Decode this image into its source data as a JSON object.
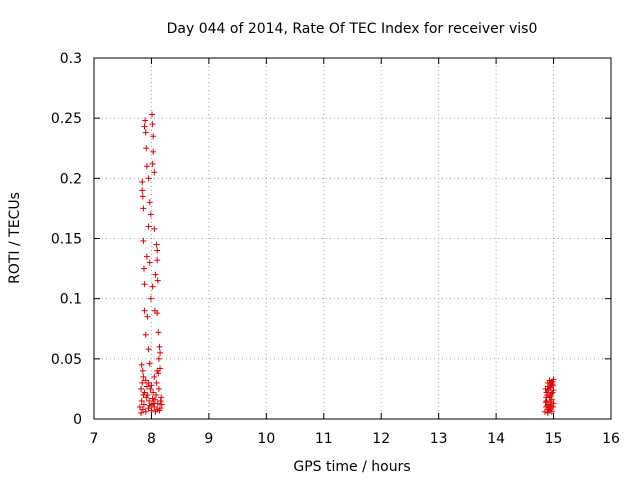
{
  "chart_data": {
    "type": "scatter",
    "title": "Day 044 of 2014, Rate Of TEC Index for receiver vis0",
    "xlabel": "GPS time / hours",
    "ylabel": "ROTI / TECUs",
    "xlim": [
      7,
      16
    ],
    "ylim": [
      0,
      0.3
    ],
    "xticks": [
      "7",
      "8",
      "9",
      "10",
      "11",
      "12",
      "13",
      "14",
      "15",
      "16"
    ],
    "yticks": [
      "0",
      "0.05",
      "0.1",
      "0.15",
      "0.2",
      "0.25",
      "0.3"
    ],
    "grid": true,
    "marker": "+",
    "series": [
      {
        "name": "vis0",
        "color": "#e00000",
        "points": [
          [
            7.84,
            0.19
          ],
          [
            7.84,
            0.197
          ],
          [
            7.85,
            0.185
          ],
          [
            7.86,
            0.175
          ],
          [
            7.88,
            0.243
          ],
          [
            7.89,
            0.248
          ],
          [
            7.9,
            0.238
          ],
          [
            7.91,
            0.225
          ],
          [
            7.92,
            0.21
          ],
          [
            7.95,
            0.2
          ],
          [
            7.97,
            0.18
          ],
          [
            7.99,
            0.17
          ],
          [
            8.01,
            0.253
          ],
          [
            8.02,
            0.245
          ],
          [
            8.03,
            0.235
          ],
          [
            8.03,
            0.222
          ],
          [
            8.02,
            0.212
          ],
          [
            8.05,
            0.205
          ],
          [
            7.86,
            0.148
          ],
          [
            7.95,
            0.16
          ],
          [
            7.97,
            0.13
          ],
          [
            7.92,
            0.135
          ],
          [
            8.05,
            0.158
          ],
          [
            8.09,
            0.145
          ],
          [
            8.1,
            0.14
          ],
          [
            8.1,
            0.132
          ],
          [
            7.87,
            0.125
          ],
          [
            7.88,
            0.112
          ],
          [
            7.99,
            0.1
          ],
          [
            8.02,
            0.11
          ],
          [
            8.07,
            0.12
          ],
          [
            8.11,
            0.115
          ],
          [
            7.88,
            0.09
          ],
          [
            7.93,
            0.085
          ],
          [
            8.06,
            0.09
          ],
          [
            8.1,
            0.088
          ],
          [
            8.12,
            0.072
          ],
          [
            7.9,
            0.07
          ],
          [
            7.95,
            0.058
          ],
          [
            8.14,
            0.06
          ],
          [
            8.15,
            0.055
          ],
          [
            8.13,
            0.05
          ],
          [
            7.83,
            0.045
          ],
          [
            7.97,
            0.046
          ],
          [
            7.85,
            0.04
          ],
          [
            7.86,
            0.035
          ],
          [
            7.84,
            0.03
          ],
          [
            7.9,
            0.032
          ],
          [
            7.95,
            0.03
          ],
          [
            8.0,
            0.028
          ],
          [
            8.05,
            0.035
          ],
          [
            8.1,
            0.04
          ],
          [
            8.12,
            0.038
          ],
          [
            8.15,
            0.042
          ],
          [
            7.82,
            0.025
          ],
          [
            7.88,
            0.022
          ],
          [
            7.93,
            0.02
          ],
          [
            7.98,
            0.025
          ],
          [
            8.03,
            0.022
          ],
          [
            8.08,
            0.02
          ],
          [
            8.13,
            0.025
          ],
          [
            8.17,
            0.018
          ],
          [
            7.83,
            0.015
          ],
          [
            7.87,
            0.012
          ],
          [
            7.91,
            0.018
          ],
          [
            7.96,
            0.015
          ],
          [
            8.01,
            0.012
          ],
          [
            8.06,
            0.016
          ],
          [
            8.11,
            0.013
          ],
          [
            8.16,
            0.015
          ],
          [
            7.8,
            0.01
          ],
          [
            7.85,
            0.008
          ],
          [
            7.9,
            0.006
          ],
          [
            7.95,
            0.009
          ],
          [
            8.0,
            0.007
          ],
          [
            8.05,
            0.01
          ],
          [
            8.1,
            0.008
          ],
          [
            8.15,
            0.009
          ],
          [
            8.18,
            0.012
          ],
          [
            7.82,
            0.005
          ],
          [
            7.97,
            0.011
          ],
          [
            8.02,
            0.017
          ],
          [
            8.07,
            0.006
          ],
          [
            7.92,
            0.027
          ],
          [
            8.09,
            0.03
          ],
          [
            8.04,
            0.013
          ],
          [
            7.86,
            0.02
          ],
          [
            8.14,
            0.007
          ],
          [
            14.85,
            0.006
          ],
          [
            14.87,
            0.01
          ],
          [
            14.88,
            0.015
          ],
          [
            14.89,
            0.02
          ],
          [
            14.9,
            0.024
          ],
          [
            14.91,
            0.008
          ],
          [
            14.92,
            0.012
          ],
          [
            14.93,
            0.018
          ],
          [
            14.94,
            0.026
          ],
          [
            14.95,
            0.03
          ],
          [
            14.96,
            0.011
          ],
          [
            14.97,
            0.016
          ],
          [
            14.98,
            0.022
          ],
          [
            14.99,
            0.028
          ],
          [
            15.0,
            0.033
          ],
          [
            14.86,
            0.014
          ],
          [
            14.88,
            0.022
          ],
          [
            14.9,
            0.005
          ],
          [
            14.92,
            0.027
          ],
          [
            14.94,
            0.009
          ],
          [
            14.96,
            0.021
          ],
          [
            14.98,
            0.031
          ],
          [
            15.0,
            0.013
          ],
          [
            14.87,
            0.018
          ],
          [
            14.91,
            0.025
          ],
          [
            14.93,
            0.007
          ],
          [
            14.95,
            0.019
          ],
          [
            14.97,
            0.029
          ],
          [
            14.99,
            0.01
          ],
          [
            15.0,
            0.024
          ],
          [
            14.89,
            0.011
          ],
          [
            14.93,
            0.032
          ],
          [
            14.95,
            0.014
          ],
          [
            14.97,
            0.006
          ],
          [
            14.86,
            0.025
          ],
          [
            14.9,
            0.03
          ]
        ]
      }
    ]
  }
}
